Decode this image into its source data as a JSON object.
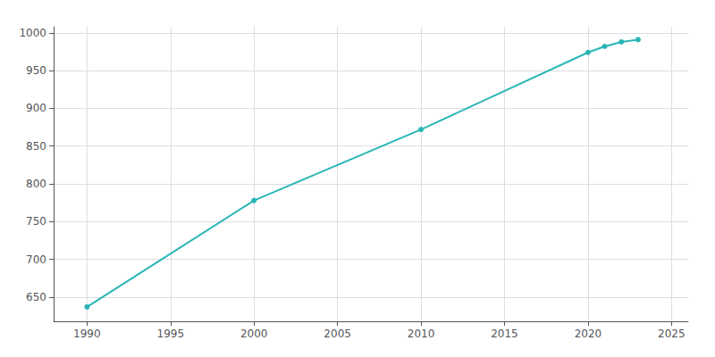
{
  "chart_data": {
    "type": "line",
    "x": [
      1990,
      2000,
      2010,
      2020,
      2021,
      2022,
      2023
    ],
    "values": [
      637,
      778,
      872,
      974,
      982,
      988,
      991
    ],
    "color": "#2ab5b5",
    "marker": "circle",
    "xlim": [
      1988,
      2026
    ],
    "ylim": [
      618,
      1008
    ],
    "xticks": [
      1990,
      1995,
      2000,
      2005,
      2010,
      2015,
      2020,
      2025
    ],
    "yticks": [
      650,
      700,
      750,
      800,
      850,
      900,
      950,
      1000
    ],
    "grid": true
  }
}
